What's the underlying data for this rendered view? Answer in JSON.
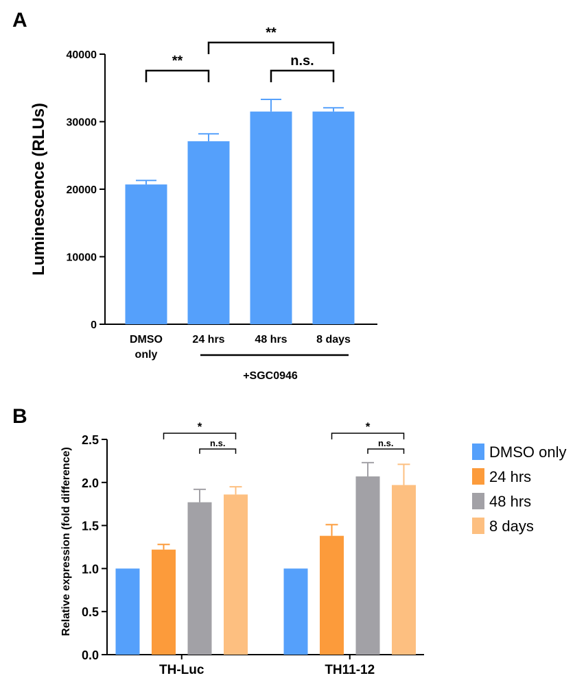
{
  "panel_labels": {
    "a": "A",
    "b": "B"
  },
  "colors": {
    "blue": "#55A0FB",
    "orange": "#FC9B3B",
    "gray": "#A2A1A6",
    "peach": "#FDBF80"
  },
  "chart_data": [
    {
      "id": "panel-a",
      "type": "bar",
      "title": "",
      "ylabel": "Luminescence (RLUs)",
      "xlabel": "",
      "ylim": [
        0,
        40000
      ],
      "yticks": [
        0,
        10000,
        20000,
        30000,
        40000
      ],
      "ytick_labels": [
        "0",
        "10000",
        "20000",
        "30000",
        "40000"
      ],
      "categories": [
        [
          "DMSO",
          "only"
        ],
        [
          "24 hrs"
        ],
        [
          "48 hrs"
        ],
        [
          "8 days"
        ]
      ],
      "values": [
        20700,
        27100,
        31500,
        31500
      ],
      "errors": [
        600,
        1100,
        1800,
        550
      ],
      "group_bracket_label": "+SGC0946",
      "significance": [
        {
          "from": 0,
          "to": 1,
          "label": "**"
        },
        {
          "from": 1,
          "to": 3,
          "label": "**"
        },
        {
          "from": 2,
          "to": 3,
          "label": "n.s."
        }
      ]
    },
    {
      "id": "panel-b",
      "type": "bar",
      "title": "",
      "ylabel": "Relative expression (fold difference)",
      "xlabel": "",
      "ylim": [
        0,
        2.5
      ],
      "yticks": [
        0,
        0.5,
        1.0,
        1.5,
        2.0,
        2.5
      ],
      "ytick_labels": [
        "0.0",
        "0.5",
        "1.0",
        "1.5",
        "2.0",
        "2.5"
      ],
      "categories": [
        "TH-Luc",
        "TH11-12"
      ],
      "series": [
        {
          "name": "DMSO only",
          "values": [
            1.0,
            1.0
          ],
          "errors": [
            0,
            0
          ]
        },
        {
          "name": "24 hrs",
          "values": [
            1.22,
            1.38
          ],
          "errors": [
            0.06,
            0.13
          ]
        },
        {
          "name": "48 hrs",
          "values": [
            1.77,
            2.07
          ],
          "errors": [
            0.15,
            0.16
          ]
        },
        {
          "name": "8 days",
          "values": [
            1.86,
            1.97
          ],
          "errors": [
            0.09,
            0.24
          ]
        }
      ],
      "legend_position": "right",
      "significance": [
        {
          "from": 1,
          "to": 3,
          "label": "*"
        },
        {
          "from": 2,
          "to": 3,
          "label": "n.s."
        }
      ]
    }
  ]
}
